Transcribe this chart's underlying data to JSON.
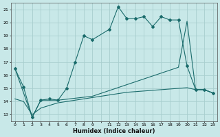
{
  "xlabel": "Humidex (Indice chaleur)",
  "bg_color": "#c8e8e8",
  "grid_color": "#a8cece",
  "line_color": "#1a6b6b",
  "xlim": [
    -0.5,
    23.5
  ],
  "ylim": [
    12.5,
    21.5
  ],
  "yticks": [
    13,
    14,
    15,
    16,
    17,
    18,
    19,
    20,
    21
  ],
  "xtick_labels": [
    "0",
    "1",
    "2",
    "3",
    "4",
    "5",
    "6",
    "7",
    "8",
    "9",
    "",
    "11",
    "12",
    "13",
    "14",
    "15",
    "16",
    "17",
    "18",
    "19",
    "20",
    "21",
    "22",
    "23"
  ],
  "line1_x": [
    0,
    1,
    2,
    3,
    4,
    5,
    6,
    7,
    8,
    9,
    11,
    12,
    13,
    14,
    15,
    16,
    17,
    18,
    19,
    20,
    21,
    22,
    23
  ],
  "line1_y": [
    16.5,
    15.1,
    12.8,
    14.1,
    14.2,
    14.1,
    15.0,
    17.0,
    19.0,
    18.7,
    19.5,
    21.2,
    20.3,
    20.3,
    20.45,
    19.7,
    20.45,
    20.2,
    20.2,
    16.7,
    14.9,
    14.9,
    14.65
  ],
  "line2_x": [
    0,
    2,
    3,
    5,
    9,
    19,
    20,
    21,
    22,
    23
  ],
  "line2_y": [
    16.5,
    12.8,
    14.1,
    14.1,
    14.4,
    16.6,
    20.1,
    14.9,
    14.9,
    14.65
  ],
  "line3_x": [
    0,
    1,
    2,
    3,
    4,
    5,
    6,
    7,
    8,
    9,
    11,
    12,
    13,
    14,
    15,
    16,
    17,
    18,
    19,
    20,
    21,
    22,
    23
  ],
  "line3_y": [
    14.2,
    14.0,
    13.0,
    13.5,
    13.7,
    13.9,
    14.0,
    14.1,
    14.2,
    14.3,
    14.5,
    14.6,
    14.7,
    14.75,
    14.8,
    14.85,
    14.9,
    14.95,
    15.0,
    15.05,
    14.9,
    14.9,
    14.65
  ]
}
